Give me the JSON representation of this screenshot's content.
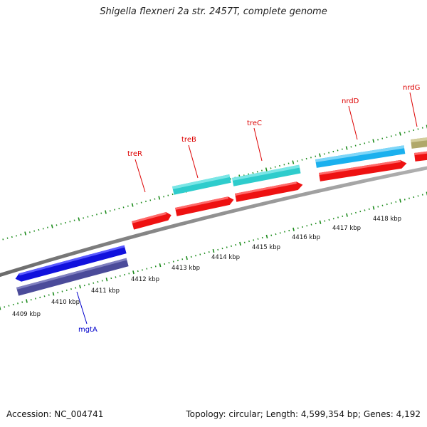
{
  "title": "Shigella flexneri 2a str. 2457T, complete genome",
  "footer": {
    "accession": "Accession: NC_004741",
    "summary": "Topology: circular; Length: 4,599,354 bp; Genes: 4,192"
  },
  "colors": {
    "backbone": "#8a8a8a",
    "tick": "#1a8a1a",
    "cds_forward_a": "#2ecccc",
    "cds_reverse": "#ee1111",
    "cds_blue": "#1111dd",
    "cds_dark": "#4b4b9a",
    "cds_sky": "#1ab0ee",
    "cds_olive": "#b0a86a",
    "label_red": "#dd0000",
    "label_blue": "#0000cc"
  },
  "scale_labels": [
    "4409 kbp",
    "4410 kbp",
    "4411 kbp",
    "4412 kbp",
    "4413 kbp",
    "4414 kbp",
    "4415 kbp",
    "4416 kbp",
    "4417 kbp",
    "4418 kbp"
  ],
  "gene_labels": [
    {
      "name": "treR",
      "color": "label_red"
    },
    {
      "name": "treB",
      "color": "label_red"
    },
    {
      "name": "treC",
      "color": "label_red"
    },
    {
      "name": "nrdD",
      "color": "label_red"
    },
    {
      "name": "nrdG",
      "color": "label_red"
    },
    {
      "name": "mgtA",
      "color": "label_blue"
    }
  ]
}
